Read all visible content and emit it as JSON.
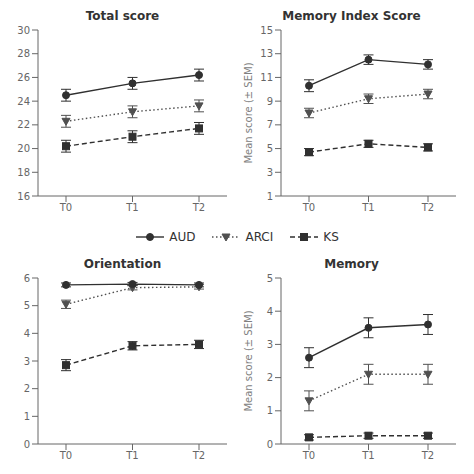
{
  "chart_data": [
    {
      "type": "line",
      "title": "Total score",
      "categories": [
        "T0",
        "T1",
        "T2"
      ],
      "ylim": [
        16,
        30
      ],
      "yticks": [
        16,
        18,
        20,
        22,
        24,
        26,
        28,
        30
      ],
      "grid": false,
      "series": [
        {
          "name": "AUD",
          "color": "#303030",
          "marker": "circle",
          "line_style": "solid",
          "values": [
            24.5,
            25.5,
            26.2
          ],
          "errors": [
            0.5,
            0.5,
            0.5
          ]
        },
        {
          "name": "ARCI",
          "color": "#505050",
          "marker": "triangle-down",
          "line_style": "dotted",
          "values": [
            22.3,
            23.1,
            23.6
          ],
          "errors": [
            0.5,
            0.5,
            0.5
          ]
        },
        {
          "name": "KS",
          "color": "#303030",
          "marker": "square",
          "line_style": "dashed",
          "values": [
            20.2,
            21.0,
            21.7
          ],
          "errors": [
            0.5,
            0.5,
            0.5
          ]
        }
      ]
    },
    {
      "type": "line",
      "title": "Memory Index Score",
      "y_label": "Mean score (± SEM)",
      "categories": [
        "T0",
        "T1",
        "T2"
      ],
      "ylim": [
        1,
        15
      ],
      "yticks": [
        1,
        3,
        5,
        7,
        9,
        11,
        13,
        15
      ],
      "grid": false,
      "series": [
        {
          "name": "AUD",
          "color": "#303030",
          "marker": "circle",
          "line_style": "solid",
          "values": [
            10.3,
            12.5,
            12.1
          ],
          "errors": [
            0.5,
            0.4,
            0.4
          ]
        },
        {
          "name": "ARCI",
          "color": "#505050",
          "marker": "triangle-down",
          "line_style": "dotted",
          "values": [
            8.0,
            9.2,
            9.6
          ],
          "errors": [
            0.4,
            0.4,
            0.4
          ]
        },
        {
          "name": "KS",
          "color": "#303030",
          "marker": "square",
          "line_style": "dashed",
          "values": [
            4.7,
            5.4,
            5.1
          ],
          "errors": [
            0.3,
            0.3,
            0.3
          ]
        }
      ]
    },
    {
      "type": "line",
      "title": "Orientation",
      "categories": [
        "T0",
        "T1",
        "T2"
      ],
      "ylim": [
        0,
        6
      ],
      "yticks": [
        0,
        1,
        2,
        3,
        4,
        5,
        6
      ],
      "grid": false,
      "series": [
        {
          "name": "AUD",
          "color": "#303030",
          "marker": "circle",
          "line_style": "solid",
          "values": [
            5.75,
            5.78,
            5.75
          ],
          "errors": [
            0.07,
            0.06,
            0.07
          ]
        },
        {
          "name": "ARCI",
          "color": "#505050",
          "marker": "triangle-down",
          "line_style": "dotted",
          "values": [
            5.05,
            5.65,
            5.68
          ],
          "errors": [
            0.15,
            0.08,
            0.08
          ]
        },
        {
          "name": "KS",
          "color": "#303030",
          "marker": "square",
          "line_style": "dashed",
          "values": [
            2.85,
            3.55,
            3.6
          ],
          "errors": [
            0.2,
            0.15,
            0.15
          ]
        }
      ]
    },
    {
      "type": "line",
      "title": "Memory",
      "y_label": "Mean score (± SEM)",
      "categories": [
        "T0",
        "T1",
        "T2"
      ],
      "ylim": [
        0,
        5
      ],
      "yticks": [
        0,
        1,
        2,
        3,
        4,
        5
      ],
      "grid": false,
      "series": [
        {
          "name": "AUD",
          "color": "#303030",
          "marker": "circle",
          "line_style": "solid",
          "values": [
            2.6,
            3.5,
            3.6
          ],
          "errors": [
            0.3,
            0.3,
            0.3
          ]
        },
        {
          "name": "ARCI",
          "color": "#505050",
          "marker": "triangle-down",
          "line_style": "dotted",
          "values": [
            1.3,
            2.1,
            2.1
          ],
          "errors": [
            0.3,
            0.3,
            0.3
          ]
        },
        {
          "name": "KS",
          "color": "#303030",
          "marker": "square",
          "line_style": "dashed",
          "values": [
            0.2,
            0.25,
            0.25
          ],
          "errors": [
            0.08,
            0.08,
            0.08
          ]
        }
      ]
    }
  ]
}
